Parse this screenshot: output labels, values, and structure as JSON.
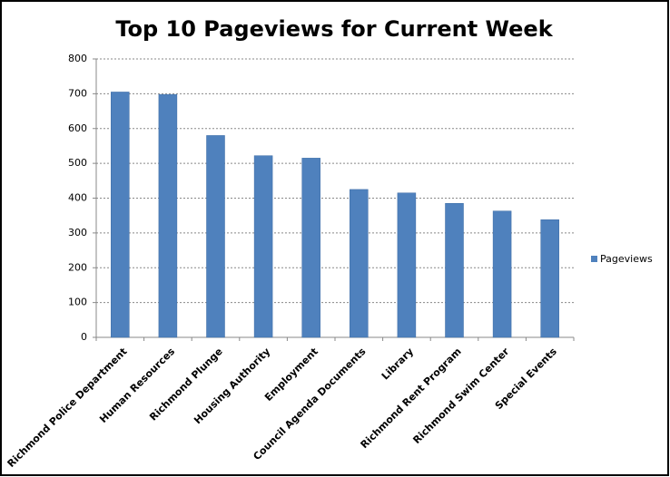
{
  "chart_data": {
    "type": "bar",
    "title": "Top 10 Pageviews for Current Week",
    "categories": [
      "Richmond Police Department",
      "Human Resources",
      "Richmond Plunge",
      "Housing Authority",
      "Employment",
      "Council Agenda Documents",
      "Library",
      "Richmond Rent Program",
      "Richmond Swim Center",
      "Special Events"
    ],
    "series": [
      {
        "name": "Pageviews",
        "color": "#4f81bd",
        "values": [
          705,
          698,
          580,
          522,
          515,
          425,
          415,
          385,
          363,
          338
        ]
      }
    ],
    "ylim": [
      0,
      800
    ],
    "yticks": [
      0,
      100,
      200,
      300,
      400,
      500,
      600,
      700,
      800
    ],
    "grid": true,
    "legend": "right"
  }
}
